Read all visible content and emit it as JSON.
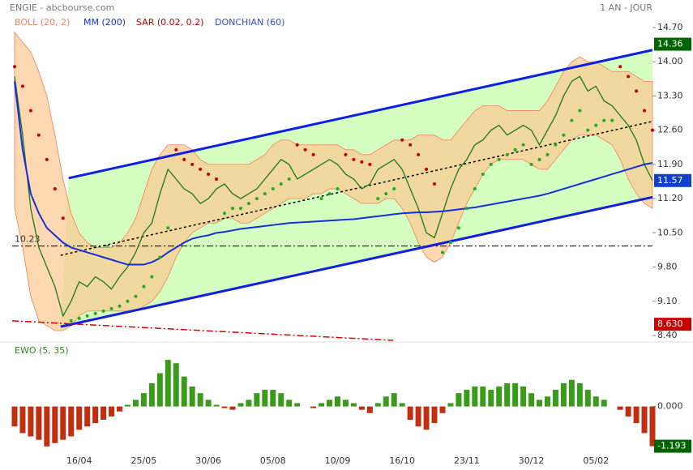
{
  "header": {
    "title": "ENGIE - abcbourse.com",
    "period": "1 AN - JOUR"
  },
  "chart_data": [
    {
      "type": "line",
      "color": "#1a7a1a",
      "values": [
        13.7,
        12.5,
        11.0,
        10.2,
        9.8,
        9.4,
        8.8,
        9.1,
        9.5,
        9.4,
        9.6,
        9.5,
        9.35,
        9.6,
        9.8,
        10.1,
        10.5,
        10.7,
        11.3,
        11.8,
        11.6,
        11.4,
        11.3,
        11.1,
        11.2,
        11.4,
        11.5,
        11.3,
        11.2,
        11.3,
        11.4,
        11.6,
        11.8,
        12.0,
        11.9,
        11.6,
        11.7,
        11.8,
        11.9,
        12.0,
        11.9,
        11.7,
        11.6,
        11.4,
        11.5,
        11.8,
        11.9,
        12.0,
        11.8,
        11.4,
        11.0,
        10.5,
        10.4,
        10.9,
        11.4,
        11.8,
        12.0,
        12.3,
        12.4,
        12.6,
        12.7,
        12.5,
        12.6,
        12.7,
        12.6,
        12.3,
        12.6,
        12.9,
        13.3,
        13.6,
        13.7,
        13.4,
        13.5,
        13.2,
        13.1,
        12.9,
        12.7,
        12.4,
        11.9,
        11.57
      ],
      "series": [
        {
          "name": "BOLL (20, 2)",
          "color": "#f08060",
          "upper": [
            14.6,
            14.4,
            14.2,
            13.8,
            13.3,
            12.5,
            11.6,
            10.9,
            10.5,
            10.3,
            10.2,
            10.2,
            10.2,
            10.3,
            10.5,
            10.8,
            11.3,
            11.8,
            12.1,
            12.3,
            12.3,
            12.3,
            12.2,
            12.0,
            11.9,
            11.9,
            11.9,
            11.9,
            11.9,
            11.9,
            12.0,
            12.1,
            12.3,
            12.4,
            12.4,
            12.3,
            12.3,
            12.3,
            12.3,
            12.3,
            12.3,
            12.2,
            12.2,
            12.1,
            12.1,
            12.2,
            12.3,
            12.4,
            12.4,
            12.4,
            12.5,
            12.5,
            12.5,
            12.4,
            12.4,
            12.6,
            12.8,
            13.0,
            13.1,
            13.1,
            13.1,
            13.0,
            13.0,
            13.0,
            13.0,
            13.0,
            13.2,
            13.5,
            13.8,
            14.0,
            14.1,
            14.0,
            14.0,
            13.9,
            13.8,
            13.8,
            13.8,
            13.7,
            13.6,
            13.6
          ],
          "lower": [
            11.0,
            10.2,
            9.2,
            8.7,
            8.6,
            8.5,
            8.5,
            8.6,
            8.8,
            8.9,
            8.9,
            8.9,
            8.9,
            8.9,
            8.9,
            8.9,
            9.0,
            9.1,
            9.3,
            9.6,
            10.0,
            10.3,
            10.5,
            10.6,
            10.7,
            10.7,
            10.8,
            10.8,
            10.7,
            10.7,
            10.8,
            10.9,
            11.0,
            11.1,
            11.2,
            11.2,
            11.2,
            11.3,
            11.3,
            11.4,
            11.4,
            11.3,
            11.2,
            11.1,
            11.1,
            11.1,
            11.2,
            11.2,
            11.0,
            10.7,
            10.3,
            10.0,
            9.9,
            10.0,
            10.3,
            10.7,
            11.1,
            11.4,
            11.7,
            11.9,
            12.0,
            12.0,
            12.0,
            12.0,
            11.9,
            11.8,
            11.8,
            12.0,
            12.2,
            12.4,
            12.5,
            12.5,
            12.5,
            12.4,
            12.3,
            12.0,
            11.6,
            11.3,
            11.1,
            11.0
          ]
        },
        {
          "name": "MM (200)",
          "color": "#1530d8",
          "values": [
            13.6,
            12.2,
            11.3,
            10.9,
            10.6,
            10.45,
            10.3,
            10.2,
            10.15,
            10.1,
            10.05,
            10.0,
            9.95,
            9.9,
            9.85,
            9.85,
            9.85,
            9.9,
            9.98,
            10.1,
            10.2,
            10.3,
            10.38,
            10.42,
            10.45,
            10.5,
            10.52,
            10.55,
            10.58,
            10.6,
            10.62,
            10.64,
            10.66,
            10.68,
            10.7,
            10.71,
            10.72,
            10.73,
            10.74,
            10.75,
            10.76,
            10.77,
            10.78,
            10.8,
            10.82,
            10.84,
            10.86,
            10.88,
            10.9,
            10.91,
            10.92,
            10.92,
            10.93,
            10.94,
            10.96,
            10.98,
            11.0,
            11.02,
            11.05,
            11.08,
            11.11,
            11.14,
            11.17,
            11.2,
            11.23,
            11.26,
            11.3,
            11.35,
            11.4,
            11.45,
            11.5,
            11.55,
            11.6,
            11.65,
            11.7,
            11.75,
            11.8,
            11.85,
            11.9,
            11.93
          ]
        },
        {
          "name": "SAR (0.02, 0.2)",
          "color": "#c00000",
          "values": [
            13.9,
            13.5,
            13.0,
            12.5,
            12.0,
            11.4,
            10.8,
            8.7,
            8.75,
            8.8,
            8.85,
            8.9,
            8.95,
            9.0,
            9.1,
            9.2,
            9.4,
            9.6,
            10.0,
            10.6,
            12.2,
            12.0,
            11.9,
            11.8,
            11.7,
            11.6,
            10.9,
            11.0,
            11.0,
            11.1,
            11.2,
            11.3,
            11.4,
            11.5,
            11.6,
            12.3,
            12.2,
            12.1,
            11.2,
            11.3,
            11.4,
            12.1,
            12.0,
            11.95,
            11.9,
            11.2,
            11.3,
            11.4,
            12.4,
            12.3,
            12.1,
            11.8,
            11.5,
            10.1,
            10.3,
            10.6,
            11.0,
            11.4,
            11.7,
            11.9,
            12.0,
            12.1,
            12.2,
            12.3,
            11.9,
            12.0,
            12.1,
            12.3,
            12.5,
            12.8,
            13.0,
            12.6,
            12.7,
            12.8,
            12.8,
            13.9,
            13.7,
            13.4,
            13.0,
            12.6
          ]
        },
        {
          "name": "DONCHIAN (60)",
          "color": "#3050c0"
        }
      ],
      "trend_lines": [
        {
          "x": [
            6.7,
            79
          ],
          "y": [
            11.62,
            14.24
          ],
          "color": "#1020e0",
          "style": "solid"
        },
        {
          "x": [
            5.7,
            79
          ],
          "y": [
            8.58,
            11.23
          ],
          "color": "#1020e0",
          "style": "solid"
        },
        {
          "x": [
            5.7,
            79
          ],
          "y": [
            10.04,
            12.78
          ],
          "color": "#000000",
          "style": "dotted"
        },
        {
          "x": [
            -0.3,
            46.9
          ],
          "y": [
            8.7,
            8.3
          ],
          "color": "#dd0000",
          "style": "dashdot"
        }
      ],
      "channel_fill": "#d4ffc0",
      "hline": {
        "value": 10.23,
        "color": "#000000"
      },
      "markers": [
        {
          "value": 14.36,
          "color": "#006400"
        },
        {
          "value": 11.57,
          "color": "#1040d0"
        },
        {
          "value": 8.63,
          "label": "8.630",
          "color": "#cc0000"
        }
      ],
      "ylim": [
        8.4,
        14.7
      ],
      "yticks": [
        {
          "value": 14.7,
          "label": "14.70"
        },
        {
          "value": 14.0,
          "label": "14.00"
        },
        {
          "value": 13.3,
          "label": "13.30"
        },
        {
          "value": 12.6,
          "label": "12.60"
        },
        {
          "value": 11.9,
          "label": "11.90"
        },
        {
          "value": 11.2,
          "label": "11.20"
        },
        {
          "value": 10.5,
          "label": "10.50"
        },
        {
          "value": 9.8,
          "label": "9.80"
        },
        {
          "value": 9.1,
          "label": "9.10"
        },
        {
          "value": 8.4,
          "label": "8.40"
        }
      ]
    },
    {
      "type": "bar",
      "name": "EWO (5, 35)",
      "positive_color": "#3a9a1a",
      "negative_color": "#c03010",
      "categories": [
        null,
        null,
        null,
        null,
        null,
        null,
        null,
        null,
        "16/04",
        null,
        null,
        null,
        null,
        null,
        null,
        null,
        "25/05",
        null,
        null,
        null,
        null,
        null,
        null,
        null,
        "30/06",
        null,
        null,
        null,
        null,
        null,
        null,
        null,
        "05/08",
        null,
        null,
        null,
        null,
        null,
        null,
        null,
        "10/09",
        null,
        null,
        null,
        null,
        null,
        null,
        null,
        "16/10",
        null,
        null,
        null,
        null,
        null,
        null,
        null,
        "23/11",
        null,
        null,
        null,
        null,
        null,
        null,
        null,
        "30/12",
        null,
        null,
        null,
        null,
        null,
        null,
        null,
        "05/02",
        null,
        null,
        null,
        null,
        null,
        null,
        null
      ],
      "values": [
        -0.6,
        -0.8,
        -0.9,
        -1.0,
        -1.2,
        -1.1,
        -1.0,
        -0.9,
        -0.7,
        -0.6,
        -0.5,
        -0.4,
        -0.3,
        -0.15,
        0.05,
        0.2,
        0.4,
        0.7,
        1.0,
        1.4,
        1.3,
        0.9,
        0.6,
        0.4,
        0.2,
        0.05,
        -0.05,
        -0.1,
        0.1,
        0.2,
        0.4,
        0.5,
        0.5,
        0.4,
        0.2,
        0.1,
        0.0,
        -0.05,
        0.1,
        0.2,
        0.3,
        0.2,
        0.1,
        -0.1,
        -0.2,
        0.1,
        0.3,
        0.4,
        0.1,
        -0.4,
        -0.6,
        -0.7,
        -0.5,
        -0.2,
        0.1,
        0.4,
        0.5,
        0.6,
        0.6,
        0.5,
        0.6,
        0.7,
        0.7,
        0.6,
        0.4,
        0.2,
        0.3,
        0.5,
        0.7,
        0.8,
        0.7,
        0.5,
        0.3,
        0.2,
        0.0,
        -0.1,
        -0.3,
        -0.5,
        -0.8,
        -1.193
      ],
      "markers": [
        {
          "value": -1.193,
          "color": "#006400"
        }
      ],
      "ylim": [
        -1.3,
        1.5
      ],
      "yticks": [
        {
          "value": 0,
          "label": "0.000"
        }
      ]
    }
  ]
}
